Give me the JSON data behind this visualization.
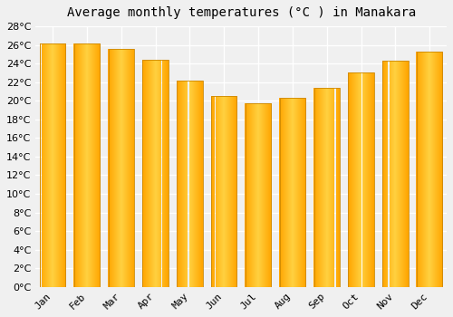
{
  "months": [
    "Jan",
    "Feb",
    "Mar",
    "Apr",
    "May",
    "Jun",
    "Jul",
    "Aug",
    "Sep",
    "Oct",
    "Nov",
    "Dec"
  ],
  "temperatures": [
    26.2,
    26.2,
    25.6,
    24.4,
    22.2,
    20.5,
    19.7,
    20.3,
    21.4,
    23.0,
    24.3,
    25.3
  ],
  "bar_color_center": "#FFD040",
  "bar_color_edge": "#FFA500",
  "bar_border_color": "#CC8800",
  "title": "Average monthly temperatures (°C ) in Manakara",
  "ylim_min": 0,
  "ylim_max": 28,
  "ytick_step": 2,
  "background_color": "#f0f0f0",
  "grid_color": "#ffffff",
  "title_fontsize": 10,
  "tick_fontsize": 8,
  "bar_width": 0.75
}
